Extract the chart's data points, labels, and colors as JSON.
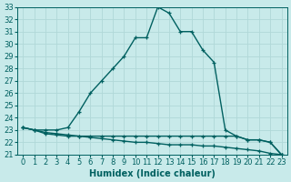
{
  "title": "",
  "xlabel": "Humidex (Indice chaleur)",
  "ylabel": "",
  "background_color": "#c8eaea",
  "grid_color": "#b0d8d8",
  "line_color": "#006060",
  "x_data": [
    0,
    1,
    2,
    3,
    4,
    5,
    6,
    7,
    8,
    9,
    10,
    11,
    12,
    13,
    14,
    15,
    16,
    17,
    18,
    19,
    20,
    21,
    22,
    23
  ],
  "series1": [
    23.2,
    23.0,
    23.0,
    23.0,
    23.2,
    24.5,
    26.0,
    27.0,
    28.0,
    29.0,
    30.5,
    30.5,
    33.0,
    32.5,
    31.0,
    31.0,
    29.5,
    28.5,
    23.0,
    22.5,
    22.2,
    22.2,
    22.0,
    21.0
  ],
  "series2": [
    23.2,
    23.0,
    22.8,
    22.7,
    22.6,
    22.5,
    22.5,
    22.5,
    22.5,
    22.5,
    22.5,
    22.5,
    22.5,
    22.5,
    22.5,
    22.5,
    22.5,
    22.5,
    22.5,
    22.5,
    22.2,
    22.2,
    22.0,
    21.0
  ],
  "series3": [
    23.2,
    23.0,
    22.7,
    22.6,
    22.5,
    22.5,
    22.4,
    22.3,
    22.2,
    22.1,
    22.0,
    22.0,
    21.9,
    21.8,
    21.8,
    21.8,
    21.7,
    21.7,
    21.6,
    21.5,
    21.4,
    21.3,
    21.1,
    21.0
  ],
  "ylim": [
    21,
    33
  ],
  "xlim": [
    -0.5,
    23.5
  ],
  "yticks": [
    21,
    22,
    23,
    24,
    25,
    26,
    27,
    28,
    29,
    30,
    31,
    32,
    33
  ],
  "xticks": [
    0,
    1,
    2,
    3,
    4,
    5,
    6,
    7,
    8,
    9,
    10,
    11,
    12,
    13,
    14,
    15,
    16,
    17,
    18,
    19,
    20,
    21,
    22,
    23
  ],
  "marker": "+",
  "marker_size": 3.5,
  "line_width": 1.0,
  "xlabel_fontsize": 7,
  "tick_fontsize": 6
}
